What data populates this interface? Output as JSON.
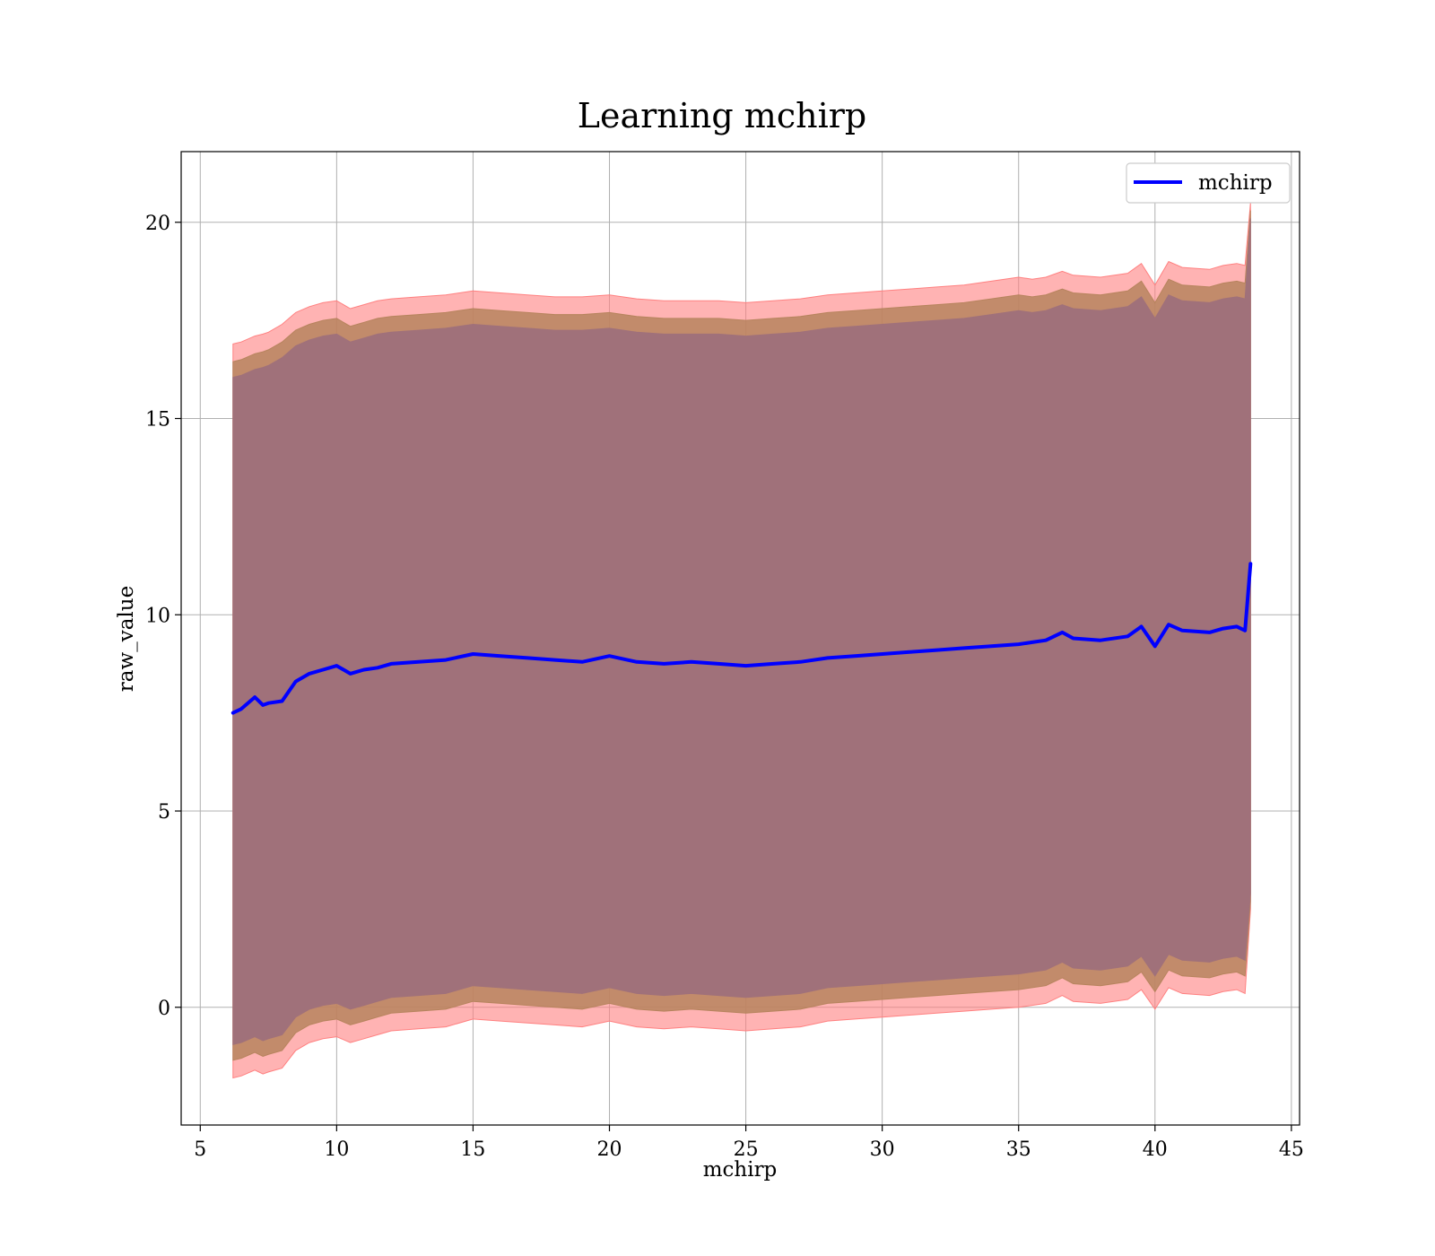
{
  "chart_data": {
    "type": "line",
    "title": "Learning mchirp",
    "xlabel": "mchirp",
    "ylabel": "raw_value",
    "xlim": [
      4.3,
      45.3
    ],
    "ylim": [
      -3,
      21.8
    ],
    "xticks": [
      5,
      10,
      15,
      20,
      25,
      30,
      35,
      40,
      45
    ],
    "yticks": [
      0,
      5,
      10,
      15,
      20
    ],
    "xtick_labels": [
      "5",
      "10",
      "15",
      "20",
      "25",
      "30",
      "35",
      "40",
      "45"
    ],
    "ytick_labels": [
      "0",
      "5",
      "10",
      "15",
      "20"
    ],
    "grid": true,
    "legend": {
      "position": "top-right",
      "entries": [
        "mchirp"
      ]
    },
    "colors": {
      "line": "#0000ff",
      "band_outer": "#ff8080",
      "band_middle": "#b7845e",
      "band_inner": "#a0717a"
    },
    "x": [
      6.2,
      6.5,
      7.0,
      7.3,
      7.5,
      8.0,
      8.5,
      9.0,
      9.5,
      10.0,
      10.5,
      11.0,
      11.5,
      12.0,
      13.0,
      14.0,
      15.0,
      16.0,
      17.0,
      18.0,
      19.0,
      20.0,
      21.0,
      22.0,
      23.0,
      24.0,
      25.0,
      26.0,
      27.0,
      28.0,
      29.0,
      30.0,
      31.0,
      32.0,
      33.0,
      34.0,
      35.0,
      35.5,
      36.0,
      36.6,
      37.0,
      38.0,
      39.0,
      39.5,
      40.0,
      40.5,
      41.0,
      42.0,
      42.5,
      43.0,
      43.3,
      43.5
    ],
    "series": [
      {
        "name": "mchirp",
        "values": [
          7.5,
          7.6,
          7.9,
          7.7,
          7.75,
          7.8,
          8.3,
          8.5,
          8.6,
          8.7,
          8.5,
          8.6,
          8.65,
          8.75,
          8.8,
          8.85,
          9.0,
          8.95,
          8.9,
          8.85,
          8.8,
          8.95,
          8.8,
          8.75,
          8.8,
          8.75,
          8.7,
          8.75,
          8.8,
          8.9,
          8.95,
          9.0,
          9.05,
          9.1,
          9.15,
          9.2,
          9.25,
          9.3,
          9.35,
          9.55,
          9.4,
          9.35,
          9.45,
          9.7,
          9.2,
          9.75,
          9.6,
          9.55,
          9.65,
          9.7,
          9.6,
          11.3
        ]
      },
      {
        "name": "",
        "upper": [
          16.9,
          16.95,
          17.1,
          17.15,
          17.2,
          17.4,
          17.7,
          17.85,
          17.95,
          18.0,
          17.8,
          17.9,
          18.0,
          18.05,
          18.1,
          18.15,
          18.25,
          18.2,
          18.15,
          18.1,
          18.1,
          18.15,
          18.05,
          18.0,
          18.0,
          18.0,
          17.95,
          18.0,
          18.05,
          18.15,
          18.2,
          18.25,
          18.3,
          18.35,
          18.4,
          18.5,
          18.6,
          18.55,
          18.6,
          18.75,
          18.65,
          18.6,
          18.7,
          18.95,
          18.4,
          19.0,
          18.85,
          18.8,
          18.9,
          18.95,
          18.9,
          20.5
        ],
        "lower": [
          -1.8,
          -1.75,
          -1.6,
          -1.7,
          -1.65,
          -1.55,
          -1.1,
          -0.9,
          -0.8,
          -0.75,
          -0.9,
          -0.8,
          -0.7,
          -0.6,
          -0.55,
          -0.5,
          -0.3,
          -0.35,
          -0.4,
          -0.45,
          -0.5,
          -0.35,
          -0.5,
          -0.55,
          -0.5,
          -0.55,
          -0.6,
          -0.55,
          -0.5,
          -0.35,
          -0.3,
          -0.25,
          -0.2,
          -0.15,
          -0.1,
          -0.05,
          0.0,
          0.05,
          0.1,
          0.3,
          0.15,
          0.1,
          0.2,
          0.45,
          -0.05,
          0.5,
          0.35,
          0.3,
          0.4,
          0.45,
          0.35,
          2.5
        ]
      },
      {
        "name": "",
        "upper": [
          16.45,
          16.5,
          16.65,
          16.7,
          16.75,
          16.95,
          17.25,
          17.4,
          17.5,
          17.55,
          17.35,
          17.45,
          17.55,
          17.6,
          17.65,
          17.7,
          17.8,
          17.75,
          17.7,
          17.65,
          17.65,
          17.7,
          17.6,
          17.55,
          17.55,
          17.55,
          17.5,
          17.55,
          17.6,
          17.7,
          17.75,
          17.8,
          17.85,
          17.9,
          17.95,
          18.05,
          18.15,
          18.1,
          18.15,
          18.3,
          18.2,
          18.15,
          18.25,
          18.5,
          17.95,
          18.55,
          18.4,
          18.35,
          18.45,
          18.5,
          18.45,
          20.3
        ],
        "lower": [
          -1.35,
          -1.3,
          -1.15,
          -1.25,
          -1.2,
          -1.1,
          -0.65,
          -0.45,
          -0.35,
          -0.3,
          -0.45,
          -0.35,
          -0.25,
          -0.15,
          -0.1,
          -0.05,
          0.15,
          0.1,
          0.05,
          0.0,
          -0.05,
          0.1,
          -0.05,
          -0.1,
          -0.05,
          -0.1,
          -0.15,
          -0.1,
          -0.05,
          0.1,
          0.15,
          0.2,
          0.25,
          0.3,
          0.35,
          0.4,
          0.45,
          0.5,
          0.55,
          0.75,
          0.6,
          0.55,
          0.65,
          0.9,
          0.4,
          0.95,
          0.8,
          0.75,
          0.85,
          0.9,
          0.8,
          2.7
        ]
      },
      {
        "name": "",
        "upper": [
          16.05,
          16.1,
          16.25,
          16.3,
          16.35,
          16.55,
          16.85,
          17.0,
          17.1,
          17.15,
          16.95,
          17.05,
          17.15,
          17.2,
          17.25,
          17.3,
          17.4,
          17.35,
          17.3,
          17.25,
          17.25,
          17.3,
          17.2,
          17.15,
          17.15,
          17.15,
          17.1,
          17.15,
          17.2,
          17.3,
          17.35,
          17.4,
          17.45,
          17.5,
          17.55,
          17.65,
          17.75,
          17.7,
          17.75,
          17.9,
          17.8,
          17.75,
          17.85,
          18.1,
          17.55,
          18.15,
          18.0,
          17.95,
          18.05,
          18.1,
          18.05,
          20.1
        ],
        "lower": [
          -0.95,
          -0.9,
          -0.75,
          -0.85,
          -0.8,
          -0.7,
          -0.25,
          -0.05,
          0.05,
          0.1,
          -0.05,
          0.05,
          0.15,
          0.25,
          0.3,
          0.35,
          0.55,
          0.5,
          0.45,
          0.4,
          0.35,
          0.5,
          0.35,
          0.3,
          0.35,
          0.3,
          0.25,
          0.3,
          0.35,
          0.5,
          0.55,
          0.6,
          0.65,
          0.7,
          0.75,
          0.8,
          0.85,
          0.9,
          0.95,
          1.15,
          1.0,
          0.95,
          1.05,
          1.3,
          0.8,
          1.35,
          1.2,
          1.15,
          1.25,
          1.3,
          1.2,
          2.9
        ]
      }
    ]
  }
}
